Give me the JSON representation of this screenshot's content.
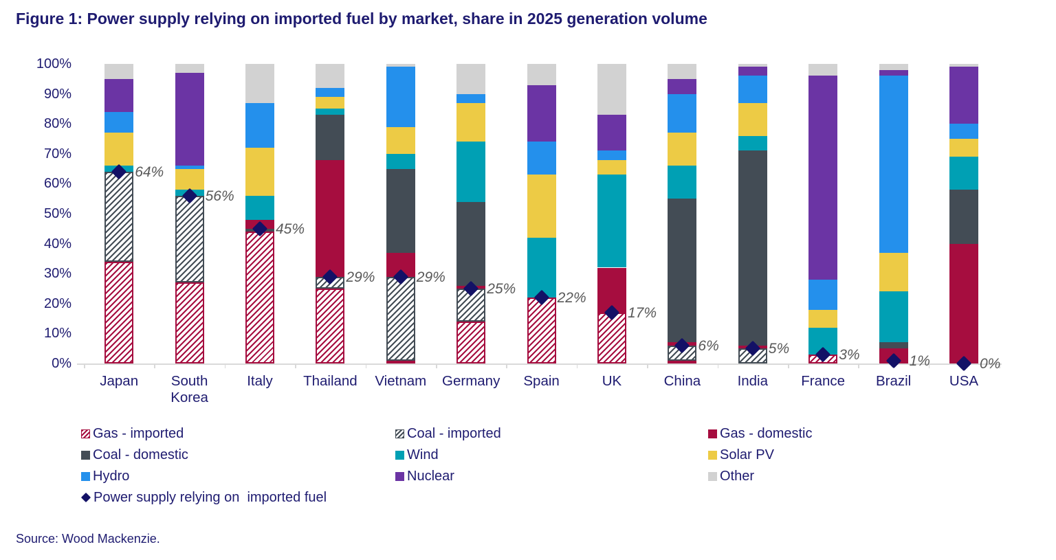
{
  "title": "Figure 1: Power supply relying on imported fuel by market, share in 2025 generation volume",
  "source": "Source: Wood Mackenzie.",
  "colors": {
    "title_text": "#1E1B70",
    "axis_text": "#1E1B70",
    "axis_line": "#D9D9D9",
    "marker": "#131166",
    "marker_label_text": "#595959",
    "gas": "#A60D3F",
    "coal": "#434C55",
    "wind": "#00A0B4",
    "solar_pv": "#EDCB45",
    "hydro": "#2490EC",
    "nuclear": "#6B34A4",
    "other": "#D2D2D2"
  },
  "chart_data": {
    "type": "bar",
    "stacked": true,
    "grid": false,
    "legend_position": "bottom",
    "ylim": [
      0,
      100
    ],
    "y_ticks": [
      "0%",
      "10%",
      "20%",
      "30%",
      "40%",
      "50%",
      "60%",
      "70%",
      "80%",
      "90%",
      "100%"
    ],
    "categories": [
      "Japan",
      "South Korea",
      "Italy",
      "Thailand",
      "Vietnam",
      "Germany",
      "Spain",
      "UK",
      "China",
      "India",
      "France",
      "Brazil",
      "USA"
    ],
    "series": [
      {
        "name": "Gas - imported",
        "color": "#A60D3F",
        "pattern": "hatch-gas",
        "values": [
          34,
          27,
          44,
          25,
          1,
          14,
          22,
          17,
          1,
          0,
          3,
          1,
          0
        ]
      },
      {
        "name": "Coal - imported",
        "color": "#434C55",
        "pattern": "hatch-coal",
        "values": [
          30,
          29,
          1,
          4,
          28,
          11,
          0,
          0,
          5,
          5,
          0,
          0,
          0
        ]
      },
      {
        "name": "Gas - domestic",
        "color": "#A60D3F",
        "pattern": "solid",
        "values": [
          0,
          0,
          3,
          39,
          8,
          1,
          0,
          15,
          1,
          1,
          0,
          4,
          40
        ]
      },
      {
        "name": "Coal - domestic",
        "color": "#434C55",
        "pattern": "solid",
        "values": [
          0,
          0,
          0,
          15,
          28,
          28,
          0,
          0,
          48,
          65,
          0,
          2,
          18
        ]
      },
      {
        "name": "Wind",
        "color": "#00A0B4",
        "pattern": "solid",
        "values": [
          2,
          2,
          8,
          2,
          5,
          20,
          20,
          31,
          11,
          5,
          9,
          17,
          11
        ]
      },
      {
        "name": "Solar PV",
        "color": "#EDCB45",
        "pattern": "solid",
        "values": [
          11,
          7,
          16,
          4,
          9,
          13,
          21,
          5,
          11,
          11,
          6,
          13,
          6
        ]
      },
      {
        "name": "Hydro",
        "color": "#2490EC",
        "pattern": "solid",
        "values": [
          7,
          1,
          15,
          3,
          20,
          3,
          11,
          3,
          13,
          9,
          10,
          59,
          5
        ]
      },
      {
        "name": "Nuclear",
        "color": "#6B34A4",
        "pattern": "solid",
        "values": [
          11,
          31,
          0,
          0,
          0,
          0,
          19,
          12,
          5,
          3,
          68,
          2,
          19
        ]
      },
      {
        "name": "Other",
        "color": "#D2D2D2",
        "pattern": "solid",
        "values": [
          5,
          3,
          13,
          8,
          1,
          10,
          7,
          17,
          5,
          1,
          4,
          2,
          1
        ]
      }
    ],
    "marker_series": {
      "name": "Power supply relying on  imported fuel",
      "values": [
        64,
        56,
        45,
        29,
        29,
        25,
        22,
        17,
        6,
        5,
        3,
        1,
        0
      ],
      "labels": [
        "64%",
        "56%",
        "45%",
        "29%",
        "29%",
        "25%",
        "22%",
        "17%",
        "6%",
        "5%",
        "3%",
        "1%",
        "0%"
      ]
    }
  },
  "legend": {
    "rows": [
      [
        "Gas - imported",
        "Coal - imported",
        "Gas - domestic"
      ],
      [
        "Coal - domestic",
        "Wind",
        "Solar PV"
      ],
      [
        "Hydro",
        "Nuclear",
        "Other"
      ]
    ],
    "marker_item": "Power supply relying on  imported fuel"
  }
}
